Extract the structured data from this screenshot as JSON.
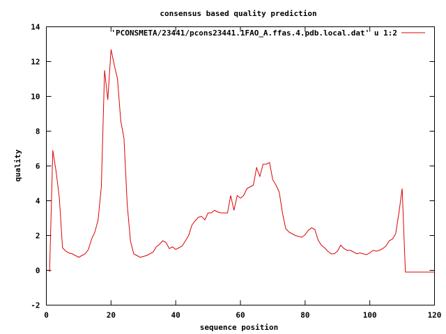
{
  "chart_data": {
    "type": "line",
    "title": "consensus based quality prediction",
    "xlabel": "sequence position",
    "ylabel": "quality",
    "xlim": [
      0,
      120
    ],
    "ylim": [
      -2,
      14
    ],
    "xticks": [
      0,
      20,
      40,
      60,
      80,
      100,
      120
    ],
    "yticks": [
      -2,
      0,
      2,
      4,
      6,
      8,
      10,
      12,
      14
    ],
    "xtick_labels": [
      "0",
      "20",
      "40",
      "60",
      "80",
      "100",
      "120"
    ],
    "ytick_labels": [
      "-2",
      "0",
      "2",
      "4",
      "6",
      "8",
      "10",
      "12",
      "14"
    ],
    "grid": false,
    "legend_position": "top-right",
    "series": [
      {
        "name": "'PCONSMETA/23441/pcons23441.1FAO_A.ffas.4.pdb.local.dat' u 1:2",
        "color": "#dd0000",
        "x": [
          1,
          2,
          3,
          4,
          5,
          6,
          7,
          8,
          9,
          10,
          11,
          12,
          13,
          14,
          15,
          16,
          17,
          18,
          19,
          20,
          21,
          22,
          23,
          24,
          25,
          26,
          27,
          28,
          29,
          30,
          31,
          32,
          33,
          34,
          35,
          36,
          37,
          38,
          39,
          40,
          41,
          42,
          43,
          44,
          45,
          46,
          47,
          48,
          49,
          50,
          51,
          52,
          53,
          54,
          55,
          56,
          57,
          58,
          59,
          60,
          61,
          62,
          63,
          64,
          65,
          66,
          67,
          68,
          69,
          70,
          71,
          72,
          73,
          74,
          75,
          76,
          77,
          78,
          79,
          80,
          81,
          82,
          83,
          84,
          85,
          86,
          87,
          88,
          89,
          90,
          91,
          92,
          93,
          94,
          95,
          96,
          97,
          98,
          99,
          100,
          101,
          102,
          103,
          104,
          105,
          106,
          107,
          108,
          109,
          110,
          111,
          112,
          113,
          114,
          115,
          116,
          117,
          118,
          119,
          120
        ],
        "y": [
          -0.1,
          6.9,
          5.7,
          4.2,
          1.3,
          1.1,
          1.0,
          0.95,
          0.85,
          0.75,
          0.85,
          0.95,
          1.2,
          1.8,
          2.2,
          2.9,
          4.8,
          11.5,
          9.8,
          12.7,
          11.8,
          11.0,
          8.6,
          7.6,
          3.8,
          1.7,
          0.95,
          0.85,
          0.75,
          0.8,
          0.85,
          0.95,
          1.05,
          1.35,
          1.5,
          1.7,
          1.6,
          1.25,
          1.35,
          1.2,
          1.3,
          1.4,
          1.7,
          2.0,
          2.6,
          2.85,
          3.05,
          3.1,
          2.9,
          3.3,
          3.3,
          3.45,
          3.35,
          3.3,
          3.3,
          3.3,
          4.3,
          3.45,
          4.3,
          4.15,
          4.3,
          4.7,
          4.8,
          4.9,
          5.9,
          5.4,
          6.1,
          6.1,
          6.2,
          5.2,
          4.9,
          4.5,
          3.3,
          2.4,
          2.2,
          2.1,
          2.0,
          1.95,
          1.9,
          2.05,
          2.3,
          2.45,
          2.35,
          1.75,
          1.45,
          1.3,
          1.1,
          0.95,
          0.95,
          1.1,
          1.45,
          1.25,
          1.15,
          1.15,
          1.05,
          0.95,
          1.0,
          0.95,
          0.9,
          1.0,
          1.15,
          1.1,
          1.15,
          1.25,
          1.4,
          1.7,
          1.8,
          2.1,
          3.3,
          4.7,
          -0.1,
          -0.1,
          -0.1,
          -0.1,
          -0.1,
          -0.1,
          -0.1,
          -0.1,
          -0.1,
          -0.1
        ]
      }
    ]
  }
}
